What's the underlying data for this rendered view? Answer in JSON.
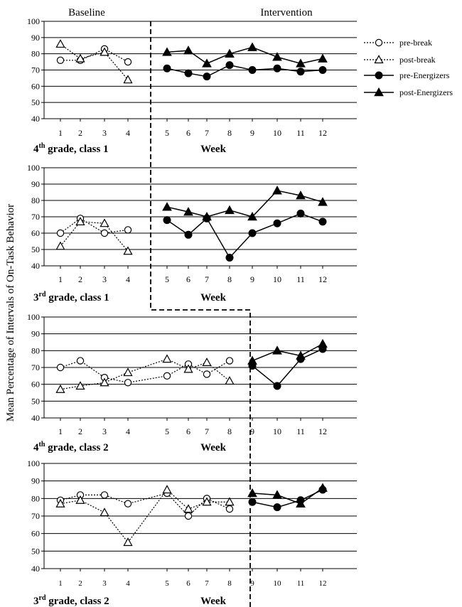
{
  "figure": {
    "phase_baseline": "Baseline",
    "phase_intervention": "Intervention",
    "y_axis_label": "Mean Percentage of Intervals of On-Task Behavior",
    "week_label": "Week"
  },
  "legend": [
    {
      "label": "pre-break",
      "marker": "circle-open",
      "line": "dotted"
    },
    {
      "label": "post-break",
      "marker": "triangle-open",
      "line": "dotted"
    },
    {
      "label": "pre-Energizers",
      "marker": "circle-filled",
      "line": "solid"
    },
    {
      "label": "post-Energizers",
      "marker": "triangle-filled",
      "line": "solid"
    }
  ],
  "chart_data": [
    {
      "type": "line",
      "panel_title": {
        "grade": "4",
        "suffix": "th",
        "rest": " grade, class 1"
      },
      "ylim": [
        40,
        100
      ],
      "yticks": [
        40,
        50,
        60,
        70,
        80,
        90,
        100
      ],
      "x": [
        1,
        2,
        3,
        4,
        5,
        6,
        7,
        8,
        9,
        10,
        11,
        12
      ],
      "baseline_weeks": 4,
      "xlabel": "Week",
      "grid": "horizontal",
      "series": [
        {
          "name": "pre-break",
          "x": [
            1,
            2,
            3,
            4
          ],
          "values": [
            76,
            76,
            83,
            75
          ]
        },
        {
          "name": "post-break",
          "x": [
            1,
            2,
            3,
            4
          ],
          "values": [
            86,
            77,
            81,
            64
          ]
        },
        {
          "name": "pre-Energizers",
          "x": [
            5,
            6,
            7,
            8,
            9,
            10,
            11,
            12
          ],
          "values": [
            71,
            68,
            66,
            73,
            70,
            71,
            69,
            70
          ]
        },
        {
          "name": "post-Energizers",
          "x": [
            5,
            6,
            7,
            8,
            9,
            10,
            11,
            12
          ],
          "values": [
            81,
            82,
            74,
            80,
            84,
            78,
            74,
            77
          ]
        }
      ]
    },
    {
      "type": "line",
      "panel_title": {
        "grade": "3",
        "suffix": "rd",
        "rest": " grade, class 1"
      },
      "ylim": [
        40,
        100
      ],
      "yticks": [
        40,
        50,
        60,
        70,
        80,
        90,
        100
      ],
      "x": [
        1,
        2,
        3,
        4,
        5,
        6,
        7,
        8,
        9,
        10,
        11,
        12
      ],
      "baseline_weeks": 4,
      "xlabel": "Week",
      "grid": "horizontal",
      "series": [
        {
          "name": "pre-break",
          "x": [
            1,
            2,
            3,
            4
          ],
          "values": [
            60,
            69,
            60,
            62
          ]
        },
        {
          "name": "post-break",
          "x": [
            1,
            2,
            3,
            4
          ],
          "values": [
            52,
            67,
            66,
            49
          ]
        },
        {
          "name": "pre-Energizers",
          "x": [
            5,
            6,
            7,
            8,
            9,
            10,
            11,
            12
          ],
          "values": [
            68,
            59,
            69,
            45,
            60,
            66,
            72,
            67
          ]
        },
        {
          "name": "post-Energizers",
          "x": [
            5,
            6,
            7,
            8,
            9,
            10,
            11,
            12
          ],
          "values": [
            76,
            73,
            70,
            74,
            70,
            86,
            83,
            79
          ]
        }
      ]
    },
    {
      "type": "line",
      "panel_title": {
        "grade": "4",
        "suffix": "th",
        "rest": " grade, class 2"
      },
      "ylim": [
        40,
        100
      ],
      "yticks": [
        40,
        50,
        60,
        70,
        80,
        90,
        100
      ],
      "x": [
        1,
        2,
        3,
        4,
        5,
        6,
        7,
        8,
        9,
        10,
        11,
        12
      ],
      "baseline_weeks": 8,
      "xlabel": "Week",
      "grid": "horizontal",
      "series": [
        {
          "name": "pre-break",
          "x": [
            1,
            2,
            3,
            4,
            5,
            6,
            7,
            8
          ],
          "values": [
            70,
            74,
            64,
            61,
            65,
            72,
            66,
            74
          ]
        },
        {
          "name": "post-break",
          "x": [
            1,
            2,
            3,
            4,
            5,
            6,
            7,
            8
          ],
          "values": [
            57,
            59,
            61,
            67,
            75,
            69,
            73,
            62
          ]
        },
        {
          "name": "pre-Energizers",
          "x": [
            9,
            10,
            11,
            12
          ],
          "values": [
            71,
            59,
            75,
            81
          ]
        },
        {
          "name": "post-Energizers",
          "x": [
            9,
            10,
            11,
            12
          ],
          "values": [
            74,
            80,
            77,
            84
          ]
        }
      ]
    },
    {
      "type": "line",
      "panel_title": {
        "grade": "3",
        "suffix": "rd",
        "rest": " grade, class 2"
      },
      "ylim": [
        40,
        100
      ],
      "yticks": [
        40,
        50,
        60,
        70,
        80,
        90,
        100
      ],
      "x": [
        1,
        2,
        3,
        4,
        5,
        6,
        7,
        8,
        9,
        10,
        11,
        12
      ],
      "baseline_weeks": 8,
      "xlabel": "Week",
      "grid": "horizontal",
      "series": [
        {
          "name": "pre-break",
          "x": [
            1,
            2,
            3,
            4,
            5,
            6,
            7,
            8
          ],
          "values": [
            79,
            82,
            82,
            77,
            83,
            70,
            80,
            74
          ]
        },
        {
          "name": "post-break",
          "x": [
            1,
            2,
            3,
            4,
            5,
            6,
            7,
            8
          ],
          "values": [
            77,
            79,
            72,
            55,
            85,
            74,
            78,
            78
          ]
        },
        {
          "name": "pre-Energizers",
          "x": [
            9,
            10,
            11,
            12
          ],
          "values": [
            78,
            75,
            79,
            85
          ]
        },
        {
          "name": "post-Energizers",
          "x": [
            9,
            10,
            11,
            12
          ],
          "values": [
            83,
            82,
            77,
            86
          ]
        }
      ]
    }
  ]
}
